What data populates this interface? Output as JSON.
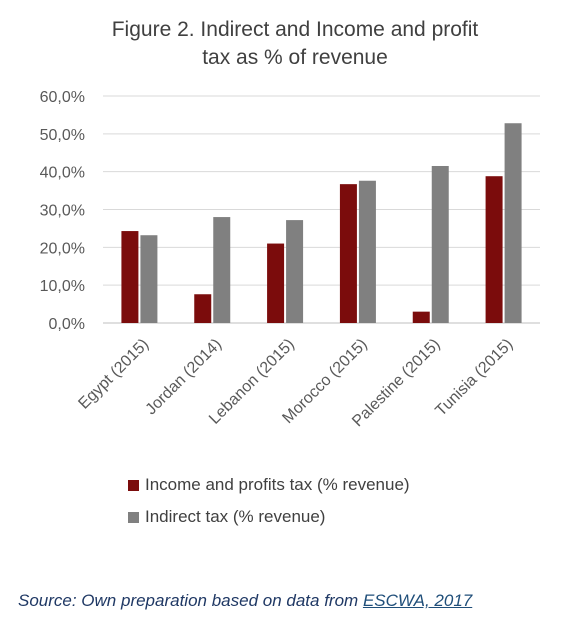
{
  "chart_data": {
    "type": "bar",
    "title_lines": [
      "Figure 2. Indirect and Income and profit",
      "tax as % of revenue"
    ],
    "categories": [
      "Egypt (2015)",
      "Jordan (2014)",
      "Lebanon (2015)",
      "Morocco (2015)",
      "Palestine (2015)",
      "Tunisia (2015)"
    ],
    "series": [
      {
        "name": "Income and profits tax (% revenue)",
        "color": "#7b0c0c",
        "values": [
          24.3,
          7.6,
          21.0,
          36.7,
          3.0,
          38.8
        ]
      },
      {
        "name": "Indirect tax (% revenue)",
        "color": "#808080",
        "values": [
          23.2,
          28.0,
          27.2,
          37.6,
          41.5,
          52.8
        ]
      }
    ],
    "ylim": [
      0,
      60
    ],
    "yticks": [
      "0,0%",
      "10,0%",
      "20,0%",
      "30,0%",
      "40,0%",
      "50,0%",
      "60,0%"
    ],
    "grid": true,
    "legend": "bottom",
    "gridColor": "#d9d9d9"
  },
  "source": {
    "prefix": "Source: Own preparation based on data from ",
    "link_text": "ESCWA, 2017"
  }
}
